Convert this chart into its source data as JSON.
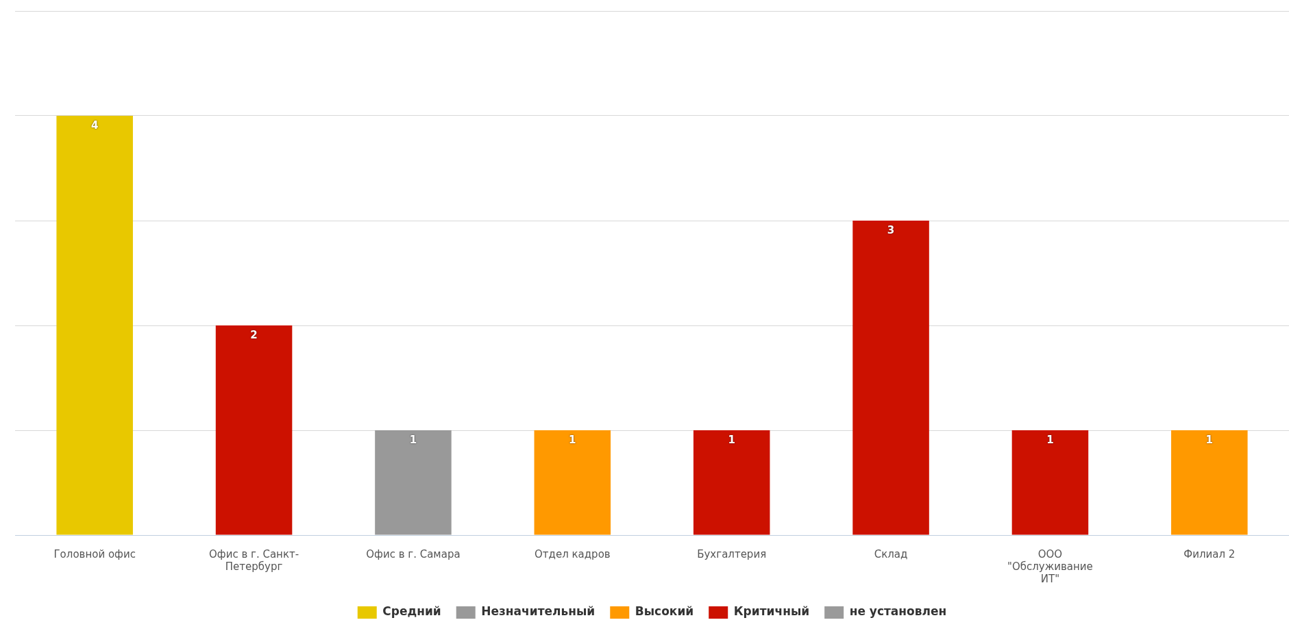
{
  "chart_data": {
    "type": "bar",
    "stacked": true,
    "categories": [
      "Головной офис",
      "Офис в г. Санкт-Петербург",
      "Офис в г. Самара",
      "Отдел кадров",
      "Бухгалтерия",
      "Склад",
      "ООО \"Обслуживание ИТ\"",
      "Филиал 2"
    ],
    "series": [
      {
        "name": "Средний",
        "color": "#e8c800",
        "values": [
          4,
          null,
          null,
          null,
          null,
          null,
          null,
          null
        ]
      },
      {
        "name": "Незначительный",
        "color": "#999999",
        "values": [
          null,
          null,
          1,
          null,
          null,
          null,
          null,
          null
        ]
      },
      {
        "name": "Высокий",
        "color": "#ff9900",
        "values": [
          null,
          null,
          null,
          1,
          null,
          null,
          null,
          1
        ]
      },
      {
        "name": "Критичный",
        "color": "#cc1100",
        "values": [
          null,
          2,
          null,
          null,
          1,
          3,
          1,
          null
        ]
      },
      {
        "name": "не установлен",
        "color": "#9a9a9a",
        "values": [
          null,
          null,
          null,
          null,
          null,
          null,
          null,
          null
        ]
      }
    ],
    "ylim": [
      0,
      5
    ],
    "yticks": [
      {
        "value": 0,
        "label": null
      },
      {
        "value": 1,
        "label": null
      },
      {
        "value": 2,
        "label": null
      },
      {
        "value": 3,
        "label": null
      },
      {
        "value": 4,
        "label": null
      },
      {
        "value": 5,
        "label": null
      }
    ],
    "tick_labels": "x",
    "grid": "y",
    "legend": "bottom",
    "data_labels": true
  }
}
